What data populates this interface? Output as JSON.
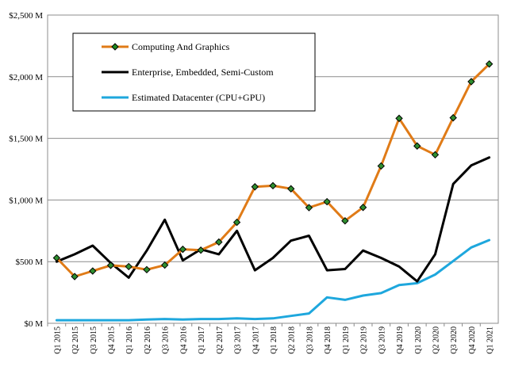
{
  "chart_data": {
    "type": "line",
    "title": "",
    "xlabel": "",
    "ylabel": "",
    "ylim": [
      0,
      2500
    ],
    "y_ticks": [
      0,
      500,
      1000,
      1500,
      2000,
      2500
    ],
    "y_tick_labels": [
      "$0 M",
      "$500 M",
      "$1,000 M",
      "$1,500 M",
      "$2,000 M",
      "$2,500 M"
    ],
    "grid": true,
    "legend_position": "top-left",
    "categories": [
      "Q1 2015",
      "Q2 2015",
      "Q3 2015",
      "Q4 2015",
      "Q1 2016",
      "Q2 2016",
      "Q3 2016",
      "Q4 2016",
      "Q1 2017",
      "Q2 2017",
      "Q3 2017",
      "Q4 2017",
      "Q1 2018",
      "Q2 2018",
      "Q3 2018",
      "Q4 2018",
      "Q1 2019",
      "Q2 2019",
      "Q3 2019",
      "Q4 2019",
      "Q1 2020",
      "Q2 2020",
      "Q3 2020",
      "Q4 2020",
      "Q1 2021"
    ],
    "series": [
      {
        "name": "Computing And Graphics",
        "color": "#e07b17",
        "marker_color": "#2f8f2f",
        "values": [
          530,
          379,
          424,
          470,
          460,
          435,
          472,
          600,
          593,
          659,
          819,
          1107,
          1116,
          1091,
          938,
          986,
          831,
          940,
          1276,
          1662,
          1438,
          1367,
          1667,
          1960,
          2103
        ]
      },
      {
        "name": "Enterprise, Embedded, Semi-Custom",
        "color": "#000000",
        "values": [
          500,
          560,
          630,
          490,
          370,
          590,
          840,
          510,
          600,
          560,
          750,
          430,
          530,
          670,
          710,
          430,
          440,
          590,
          530,
          460,
          340,
          560,
          1130,
          1280,
          1345
        ]
      },
      {
        "name": "Estimated Datacenter (CPU+GPU)",
        "color": "#1ea7dd",
        "values": [
          25,
          25,
          25,
          25,
          25,
          30,
          35,
          30,
          35,
          35,
          40,
          35,
          40,
          60,
          80,
          210,
          190,
          225,
          245,
          310,
          325,
          395,
          505,
          615,
          675
        ]
      }
    ]
  }
}
